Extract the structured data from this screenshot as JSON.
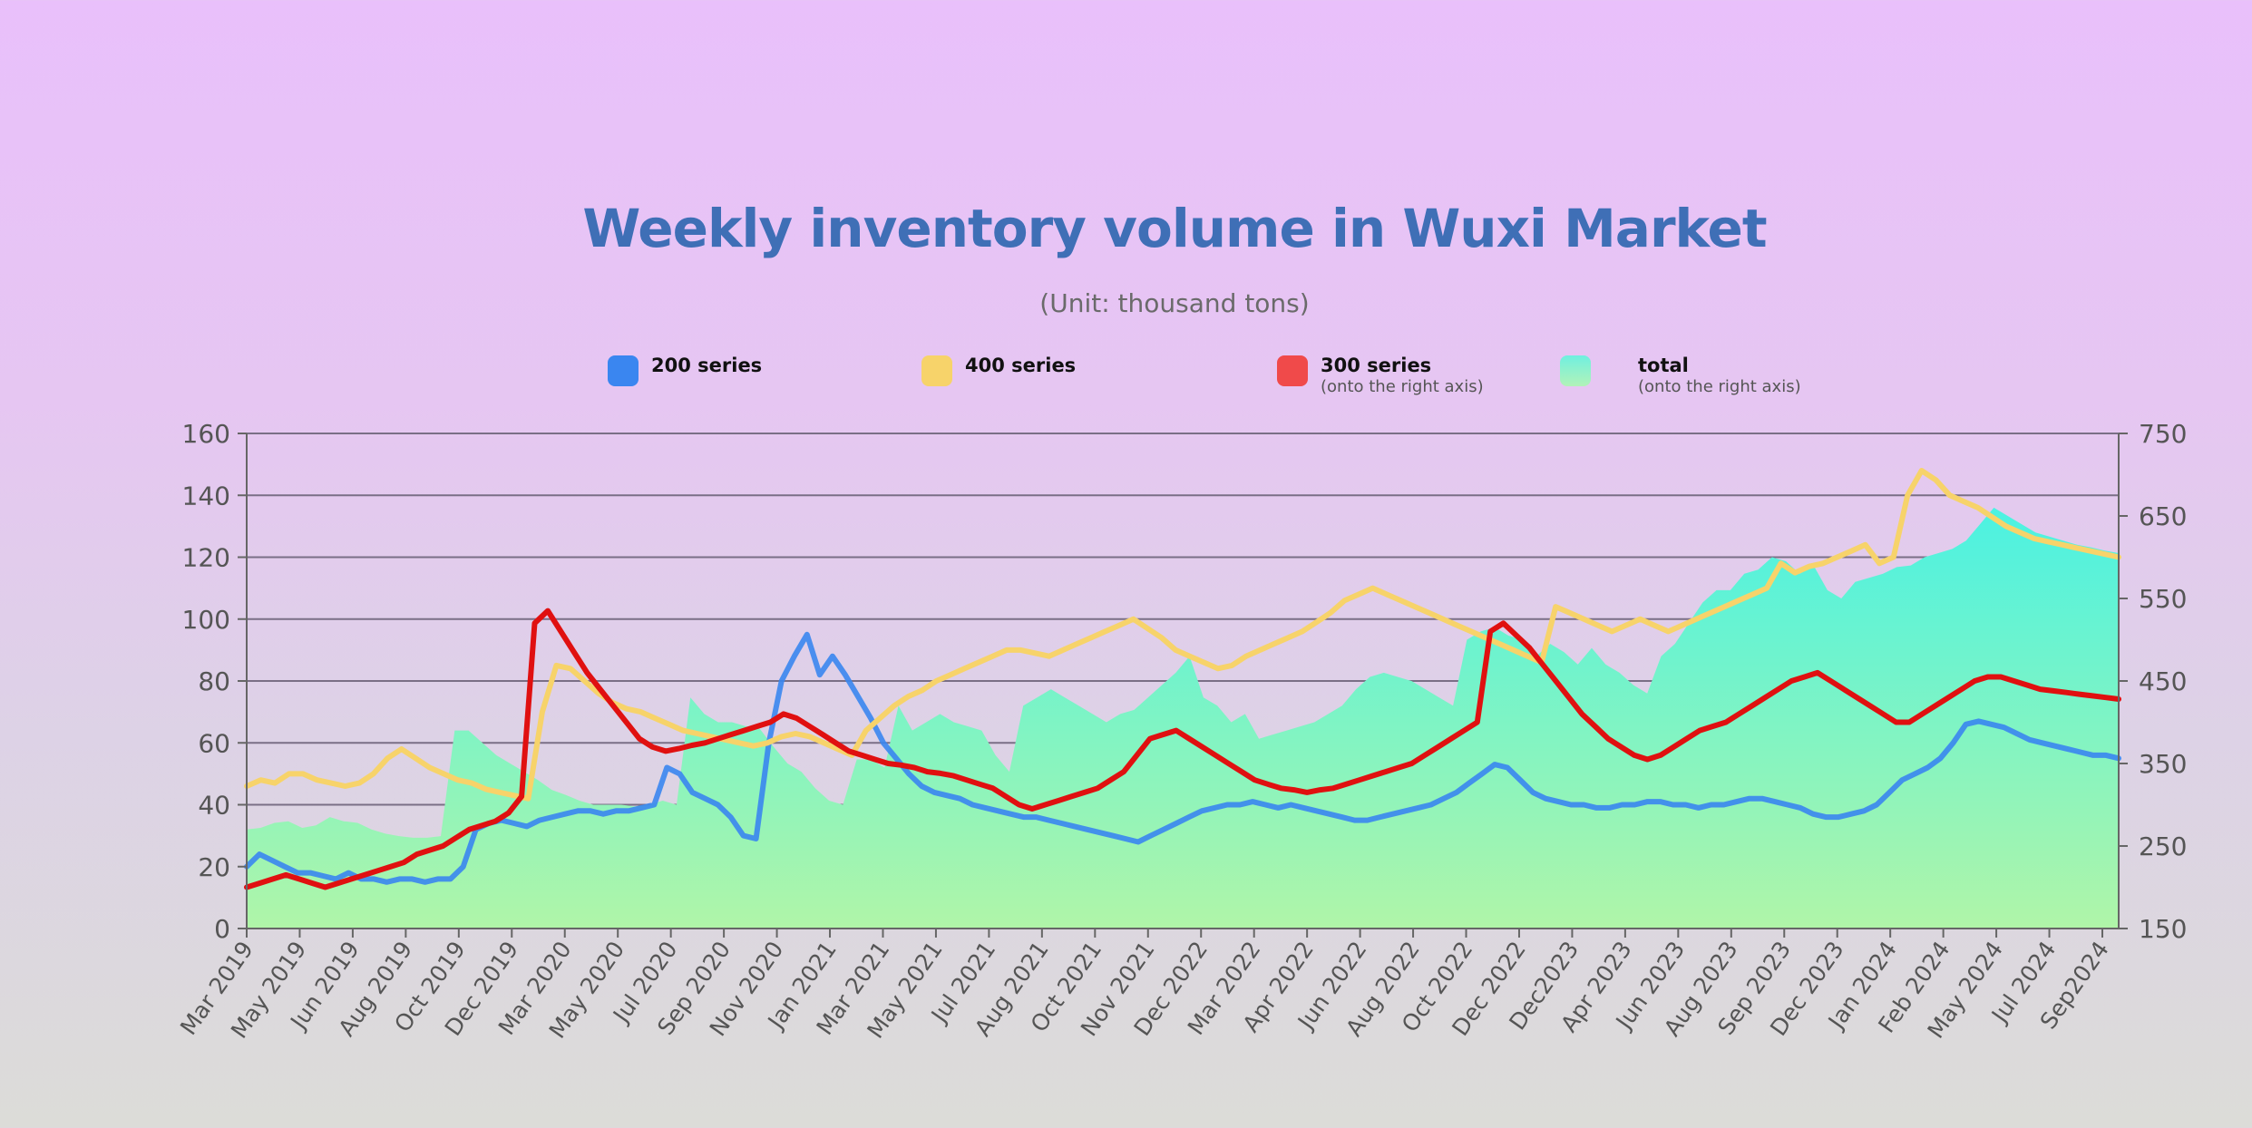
{
  "chart_data": {
    "type": "line",
    "title": "Weekly inventory volume in Wuxi Market",
    "subtitle": "(Unit: thousand tons)",
    "legend": [
      {
        "name": "200 series",
        "note": "",
        "color": "#3a86f0"
      },
      {
        "name": "400 series",
        "note": "",
        "color": "#f7d36a"
      },
      {
        "name": "300 series",
        "note": "(onto the right axis)",
        "color": "#f04a4a"
      },
      {
        "name": "total",
        "note": "(onto the right axis)",
        "color": "#6ff0e0"
      }
    ],
    "left_axis": {
      "min": 0,
      "max": 160,
      "ticks": [
        "0",
        "20",
        "40",
        "60",
        "80",
        "100",
        "120",
        "140",
        "160"
      ]
    },
    "right_axis": {
      "min": 150,
      "max": 750,
      "ticks": [
        "150",
        "250",
        "350",
        "450",
        "550",
        "650",
        "750"
      ]
    },
    "x_labels": [
      "Mar 2019",
      "May 2019",
      "Jun 2019",
      "Aug 2019",
      "Oct 2019",
      "Dec 2019",
      "Mar 2020",
      "May 2020",
      "Jul 2020",
      "Sep 2020",
      "Nov 2020",
      "Jan 2021",
      "Mar 2021",
      "May 2021",
      "Jul 2021",
      "Aug 2021",
      "Oct 2021",
      "Nov 2021",
      "Dec 2022",
      "Mar 2022",
      "Apr 2022",
      "Jun 2022",
      "Aug 2022",
      "Oct 2022",
      "Dec 2022",
      "Dec2023",
      "Apr 2023",
      "Jun 2023",
      "Aug 2023",
      "Sep 2023",
      "Dec 2023",
      "Jan 2024",
      "Feb 2024",
      "May 2024",
      "Jul 2024",
      "Sep2024"
    ],
    "series": [
      {
        "name": "total",
        "axis": "right",
        "type": "area",
        "color": "#6ff0e0",
        "values": [
          270,
          272,
          278,
          280,
          272,
          275,
          285,
          280,
          278,
          270,
          265,
          262,
          260,
          260,
          262,
          390,
          390,
          375,
          360,
          350,
          340,
          330,
          318,
          312,
          305,
          300,
          300,
          300,
          298,
          300,
          305,
          300,
          430,
          410,
          400,
          400,
          395,
          392,
          370,
          350,
          340,
          320,
          305,
          300,
          355,
          355,
          345,
          420,
          390,
          400,
          410,
          400,
          395,
          390,
          360,
          340,
          420,
          430,
          440,
          430,
          420,
          410,
          400,
          410,
          415,
          430,
          445,
          460,
          480,
          430,
          420,
          400,
          410,
          380,
          385,
          390,
          395,
          400,
          410,
          420,
          440,
          455,
          460,
          455,
          450,
          440,
          430,
          420,
          500,
          510,
          515,
          505,
          500,
          480,
          495,
          485,
          470,
          490,
          470,
          460,
          445,
          435,
          480,
          495,
          520,
          545,
          560,
          560,
          580,
          585,
          600,
          595,
          580,
          590,
          560,
          550,
          570,
          575,
          580,
          588,
          590,
          600,
          605,
          610,
          620,
          640,
          660,
          650,
          640,
          630,
          625,
          620,
          615,
          612,
          608,
          605
        ]
      },
      {
        "name": "200 series",
        "axis": "left",
        "type": "line",
        "color": "#3a86f0",
        "values": [
          20,
          24,
          22,
          20,
          18,
          18,
          17,
          16,
          18,
          16,
          16,
          15,
          16,
          16,
          15,
          16,
          16,
          20,
          32,
          34,
          35,
          34,
          33,
          35,
          36,
          37,
          38,
          38,
          37,
          38,
          38,
          39,
          40,
          52,
          50,
          44,
          42,
          40,
          36,
          30,
          29,
          60,
          80,
          88,
          95,
          82,
          88,
          82,
          75,
          68,
          60,
          55,
          50,
          46,
          44,
          43,
          42,
          40,
          39,
          38,
          37,
          36,
          36,
          35,
          34,
          33,
          32,
          31,
          30,
          29,
          28,
          30,
          32,
          34,
          36,
          38,
          39,
          40,
          40,
          41,
          40,
          39,
          40,
          39,
          38,
          37,
          36,
          35,
          35,
          36,
          37,
          38,
          39,
          40,
          42,
          44,
          47,
          50,
          53,
          52,
          48,
          44,
          42,
          41,
          40,
          40,
          39,
          39,
          40,
          40,
          41,
          41,
          40,
          40,
          39,
          40,
          40,
          41,
          42,
          42,
          41,
          40,
          39,
          37,
          36,
          36,
          37,
          38,
          40,
          44,
          48,
          50,
          52,
          55,
          60,
          66,
          67,
          66,
          65,
          63,
          61,
          60,
          59,
          58,
          57,
          56,
          56,
          55
        ]
      },
      {
        "name": "400 series",
        "axis": "left",
        "type": "line",
        "color": "#f7d36a",
        "values": [
          46,
          48,
          47,
          50,
          50,
          48,
          47,
          46,
          47,
          50,
          55,
          58,
          55,
          52,
          50,
          48,
          47,
          45,
          44,
          43,
          42,
          70,
          85,
          84,
          80,
          76,
          73,
          71,
          70,
          68,
          66,
          64,
          63,
          62,
          61,
          60,
          59,
          60,
          62,
          63,
          62,
          60,
          58,
          56,
          64,
          68,
          72,
          75,
          77,
          80,
          82,
          84,
          86,
          88,
          90,
          90,
          89,
          88,
          90,
          92,
          94,
          96,
          98,
          100,
          97,
          94,
          90,
          88,
          86,
          84,
          85,
          88,
          90,
          92,
          94,
          96,
          99,
          102,
          106,
          108,
          110,
          108,
          106,
          104,
          102,
          100,
          98,
          96,
          94,
          92,
          90,
          88,
          86,
          104,
          102,
          100,
          98,
          96,
          98,
          100,
          98,
          96,
          98,
          100,
          102,
          104,
          106,
          108,
          110,
          118,
          115,
          117,
          118,
          120,
          122,
          124,
          118,
          120,
          140,
          148,
          145,
          140,
          138,
          136,
          133,
          130,
          128,
          126,
          125,
          124,
          123,
          122,
          121,
          120
        ]
      },
      {
        "name": "300 series",
        "axis": "right",
        "type": "line",
        "color": "#e01010",
        "values": [
          200,
          205,
          210,
          215,
          210,
          205,
          200,
          205,
          210,
          215,
          220,
          225,
          230,
          240,
          245,
          250,
          260,
          270,
          275,
          280,
          290,
          310,
          520,
          535,
          510,
          485,
          460,
          440,
          420,
          400,
          380,
          370,
          365,
          368,
          372,
          375,
          380,
          385,
          390,
          395,
          400,
          410,
          405,
          395,
          385,
          375,
          365,
          360,
          355,
          350,
          348,
          345,
          340,
          338,
          335,
          330,
          325,
          320,
          310,
          300,
          295,
          300,
          305,
          310,
          315,
          320,
          330,
          340,
          360,
          380,
          385,
          390,
          380,
          370,
          360,
          350,
          340,
          330,
          325,
          320,
          318,
          315,
          318,
          320,
          325,
          330,
          335,
          340,
          345,
          350,
          360,
          370,
          380,
          390,
          400,
          510,
          520,
          505,
          490,
          470,
          450,
          430,
          410,
          395,
          380,
          370,
          360,
          355,
          360,
          370,
          380,
          390,
          395,
          400,
          410,
          420,
          430,
          440,
          450,
          455,
          460,
          450,
          440,
          430,
          420,
          410,
          400,
          400,
          410,
          420,
          430,
          440,
          450,
          455,
          455,
          450,
          445,
          440,
          438,
          436,
          434,
          432,
          430,
          428
        ]
      }
    ]
  }
}
